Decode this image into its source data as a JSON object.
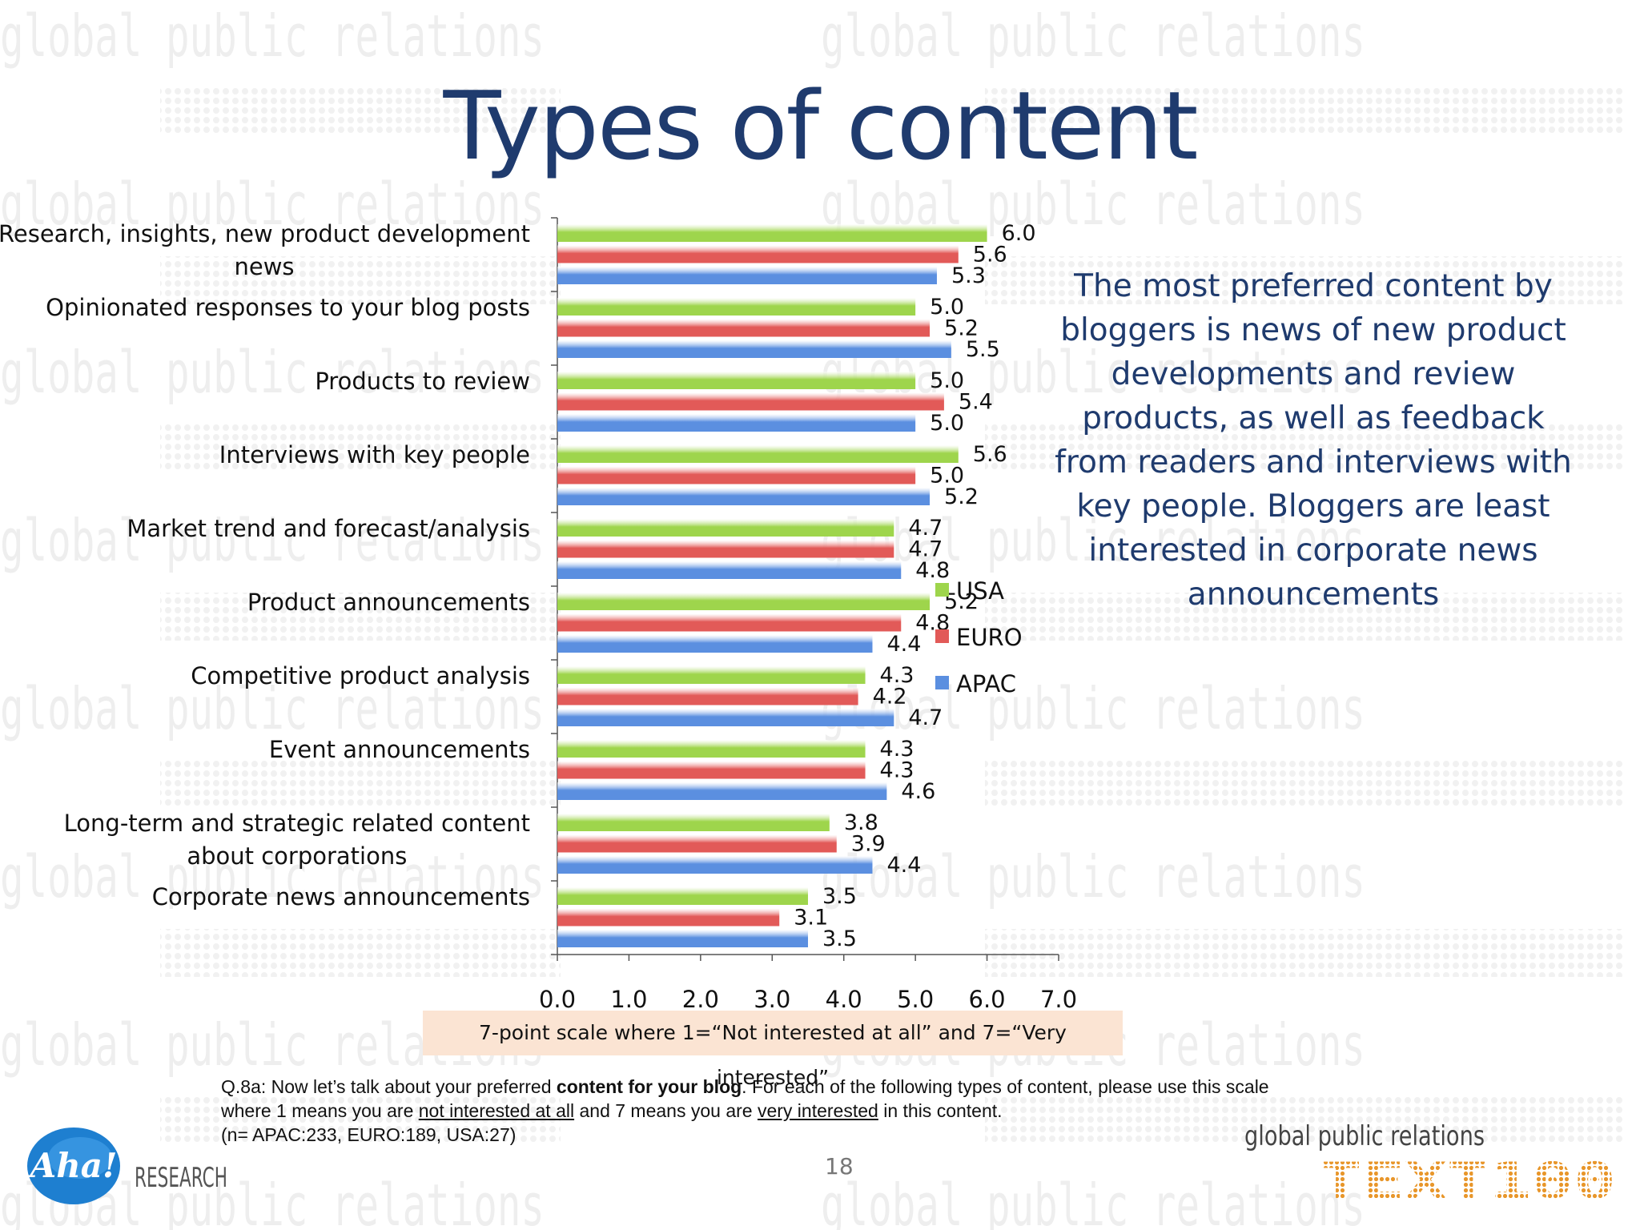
{
  "slide": {
    "title": "Types of content",
    "takeaway": "The most preferred content by bloggers is news of new product developments and review products, as well as feedback from readers and interviews with key people. Bloggers are least interested in corporate news announcements",
    "scale_note": "7-point scale where 1=“Not interested at all” and 7=“Very interested”",
    "question": {
      "l1_a": "Q.8a: Now let’s talk about your preferred ",
      "l1_b": "content for your blog",
      "l1_c": ". For each of the following types of content, please use this scale",
      "l2_a": "where 1 means you are ",
      "l2_b": "not interested at all",
      "l2_c": " and 7 means you are ",
      "l2_d": "very interested",
      "l2_e": " in this content.",
      "l3": "(n= APAC:233, EURO:189, USA:27)"
    },
    "page_number": "18",
    "watermark_text": "global public relations",
    "logos": {
      "aha": "Aha!",
      "aha_sub": "RESEARCH",
      "text100_tag": "global public relations",
      "text100": "TEXT100"
    },
    "colors": {
      "usa": "#9ed54c",
      "euro": "#e25a58",
      "apac": "#5b8fe0",
      "title": "#1f3b6e"
    }
  },
  "chart_data": {
    "type": "bar",
    "orientation": "horizontal",
    "categories": [
      [
        "Research, insights, new product development",
        "news"
      ],
      [
        "Opinionated responses to your blog posts"
      ],
      [
        "Products to review"
      ],
      [
        "Interviews with key people"
      ],
      [
        "Market trend and forecast/analysis"
      ],
      [
        "Product announcements"
      ],
      [
        "Competitive product analysis"
      ],
      [
        "Event announcements"
      ],
      [
        "Long-term and strategic related content",
        "about corporations"
      ],
      [
        "Corporate news announcements"
      ]
    ],
    "series": [
      {
        "name": "USA",
        "color": "#9ed54c",
        "values": [
          6.0,
          5.0,
          5.0,
          5.6,
          4.7,
          5.2,
          4.3,
          4.3,
          3.8,
          3.5
        ]
      },
      {
        "name": "EURO",
        "color": "#e25a58",
        "values": [
          5.6,
          5.2,
          5.4,
          5.0,
          4.7,
          4.8,
          4.2,
          4.3,
          3.9,
          3.1
        ]
      },
      {
        "name": "APAC",
        "color": "#5b8fe0",
        "values": [
          5.3,
          5.5,
          5.0,
          5.2,
          4.8,
          4.4,
          4.7,
          4.6,
          4.4,
          3.5
        ]
      }
    ],
    "xlim": [
      0,
      7
    ],
    "xticks": [
      "0.0",
      "1.0",
      "2.0",
      "3.0",
      "4.0",
      "5.0",
      "6.0",
      "7.0"
    ],
    "legend_position": "right",
    "grid": false
  }
}
